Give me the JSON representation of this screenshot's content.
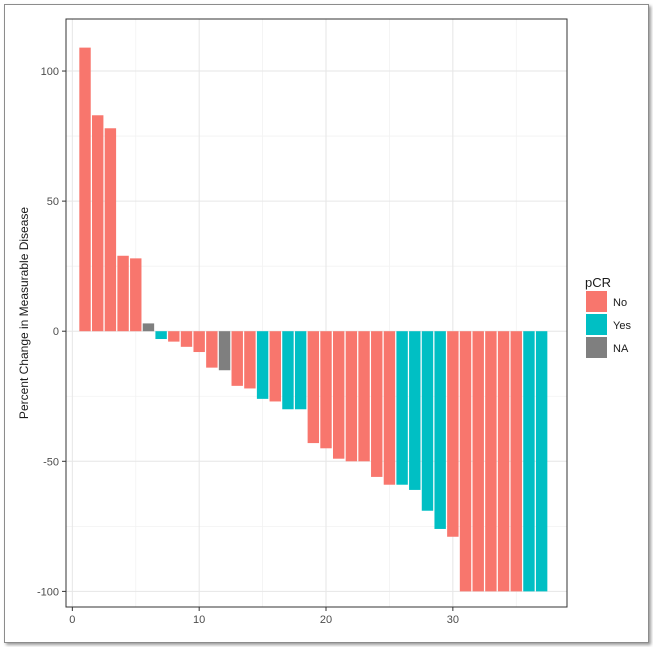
{
  "chart_data": {
    "type": "bar",
    "title": "",
    "xlabel": "",
    "ylabel": "Percent Change in Measurable Disease",
    "xlim": [
      -0.5,
      39
    ],
    "ylim": [
      -106,
      120
    ],
    "xticks": [
      0,
      10,
      20,
      30
    ],
    "yticks": [
      -100,
      -50,
      0,
      50,
      100
    ],
    "grid": true,
    "legend": {
      "title": "pCR",
      "position": "right",
      "entries": [
        "No",
        "Yes",
        "NA"
      ]
    },
    "colors": {
      "No": "#f8766d",
      "Yes": "#00bfc4",
      "NA": "#7f7f7f"
    },
    "x": [
      1,
      2,
      3,
      4,
      5,
      6,
      7,
      8,
      9,
      10,
      11,
      12,
      13,
      14,
      15,
      16,
      17,
      18,
      19,
      20,
      21,
      22,
      23,
      24,
      25,
      26,
      27,
      28,
      29,
      30,
      31,
      32,
      33,
      34,
      35,
      36,
      37
    ],
    "values": [
      109,
      83,
      78,
      29,
      28,
      3,
      -3,
      -4,
      -6,
      -8,
      -14,
      -15,
      -21,
      -22,
      -26,
      -27,
      -30,
      -30,
      -43,
      -45,
      -49,
      -50,
      -50,
      -56,
      -59,
      -59,
      -61,
      -69,
      -76,
      -79,
      -100,
      -100,
      -100,
      -100,
      -100,
      -100,
      -100
    ],
    "groups": [
      "No",
      "No",
      "No",
      "No",
      "No",
      "NA",
      "Yes",
      "No",
      "No",
      "No",
      "No",
      "NA",
      "No",
      "No",
      "Yes",
      "No",
      "Yes",
      "Yes",
      "No",
      "No",
      "No",
      "No",
      "No",
      "No",
      "No",
      "Yes",
      "Yes",
      "Yes",
      "Yes",
      "No",
      "No",
      "No",
      "No",
      "No",
      "No",
      "Yes",
      "Yes"
    ]
  }
}
